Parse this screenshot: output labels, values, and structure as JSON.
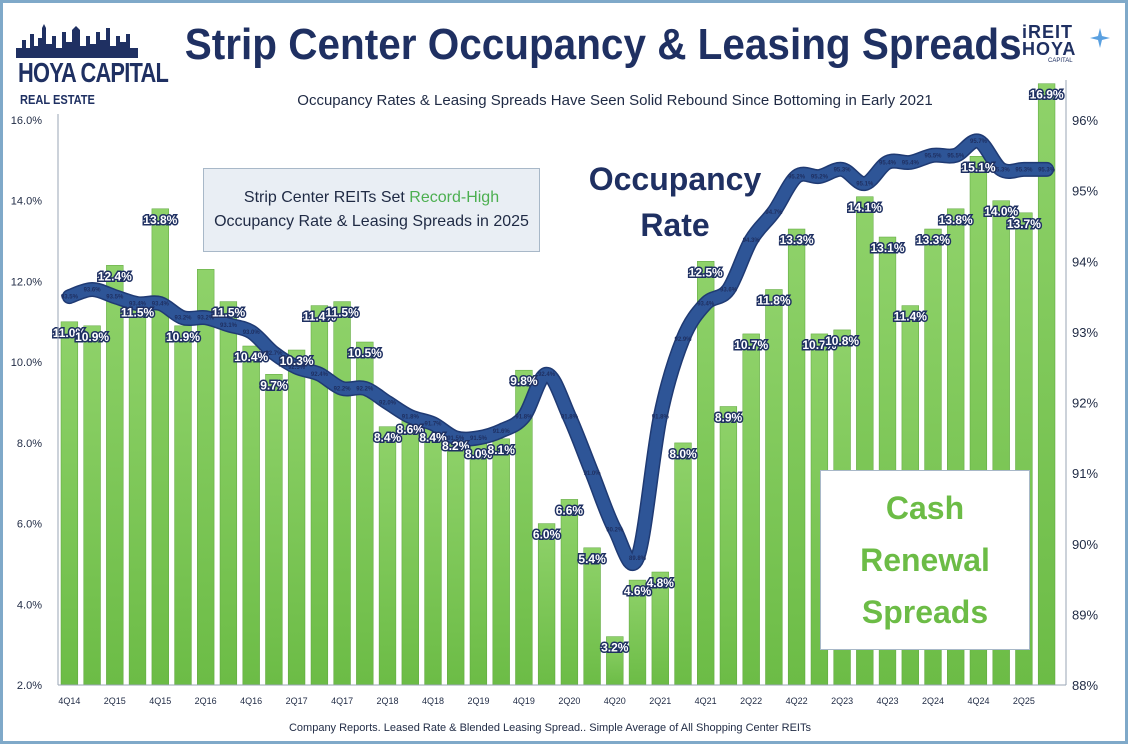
{
  "header": {
    "title": "Strip Center Occupancy & Leasing Spreads",
    "subtitle": "Occupancy Rates & Leasing Spreads Have Seen Solid Rebound Since Bottoming in Early 2021",
    "logo_left_name": "HOYA CAPITAL",
    "logo_left_sub": "REAL ESTATE",
    "logo_right_line1": "iREIT",
    "logo_right_line2": "HOYA",
    "logo_right_line3": "CAPITAL"
  },
  "callout": {
    "line1_prefix": "Strip Center REITs Set ",
    "line1_highlight": "Record-High",
    "line2": "Occupancy Rate & Leasing Spreads in 2025"
  },
  "occupancy_label": {
    "line1": "Occupancy",
    "line2": "Rate"
  },
  "cash_label": {
    "line1": "Cash",
    "line2": "Renewal",
    "line3": "Spreads"
  },
  "footer": "Company Reports. Leased Rate & Blended Leasing Spread.. Simple Average of All Shopping Center REITs",
  "colors": {
    "bar": "#6cbc46",
    "bar_top": "#8fd26a",
    "line": "#2e5597",
    "title": "#1f3062",
    "frame": "#7fa9c9",
    "highlight": "#4caf50"
  },
  "chart_data": {
    "type": "bar",
    "x_tick_labels": [
      "4Q14",
      "2Q15",
      "4Q15",
      "2Q16",
      "4Q16",
      "2Q17",
      "4Q17",
      "2Q18",
      "4Q18",
      "2Q19",
      "4Q19",
      "2Q20",
      "4Q20",
      "2Q21",
      "4Q21",
      "2Q22",
      "4Q22",
      "2Q23",
      "4Q23",
      "2Q24",
      "4Q24",
      "2Q25"
    ],
    "y_left": {
      "ylim": [
        2.0,
        16.0
      ],
      "ticks": [
        "2.0%",
        "4.0%",
        "6.0%",
        "8.0%",
        "10.0%",
        "12.0%",
        "14.0%",
        "16.0%"
      ]
    },
    "y_right": {
      "ylim": [
        88,
        96
      ],
      "ticks": [
        "88%",
        "89%",
        "90%",
        "91%",
        "92%",
        "93%",
        "94%",
        "95%",
        "96%"
      ]
    },
    "series": [
      {
        "kind": "bar",
        "values": [
          11.0,
          10.9,
          12.4,
          11.5,
          13.8,
          10.9,
          12.3,
          11.5,
          10.4,
          9.7,
          10.3,
          11.4,
          11.5,
          10.5,
          8.4,
          8.6,
          8.4,
          8.2,
          8.0,
          8.1,
          9.8,
          6.0,
          6.6,
          5.4,
          3.2,
          4.6,
          4.8,
          8.0,
          12.5,
          8.9,
          10.7,
          11.8,
          13.3,
          10.7,
          10.8,
          14.1,
          13.1,
          11.4,
          13.3,
          13.8,
          15.1,
          14.0,
          13.7,
          16.9
        ],
        "labels": [
          "11.0%",
          "10.9%",
          "12.4%",
          "11.5%",
          "13.8%",
          "10.9%",
          "",
          "11.5%",
          "10.4%",
          "9.7%",
          "10.3%",
          "11.4%",
          "11.5%",
          "10.5%",
          "8.4%",
          "8.6%",
          "8.4%",
          "8.2%",
          "8.0%",
          "8.1%",
          "9.8%",
          "6.0%",
          "6.6%",
          "5.4%",
          "3.2%",
          "4.6%",
          "4.8%",
          "8.0%",
          "12.5%",
          "8.9%",
          "10.7%",
          "11.8%",
          "13.3%",
          "10.7%",
          "10.8%",
          "14.1%",
          "13.1%",
          "11.4%",
          "13.3%",
          "13.8%",
          "15.1%",
          "14.0%",
          "13.7%",
          "16.9%"
        ]
      },
      {
        "kind": "line",
        "values": [
          93.5,
          93.6,
          93.5,
          93.4,
          93.4,
          93.2,
          93.2,
          93.1,
          93.0,
          92.7,
          92.5,
          92.4,
          92.2,
          92.2,
          92.0,
          91.8,
          91.7,
          91.5,
          91.5,
          91.6,
          91.8,
          92.4,
          91.8,
          91.0,
          90.2,
          89.8,
          91.8,
          92.9,
          93.4,
          93.6,
          94.3,
          94.7,
          95.2,
          95.2,
          95.3,
          95.1,
          95.4,
          95.4,
          95.5,
          95.5,
          95.7,
          95.3,
          95.3,
          95.3
        ],
        "labels": [
          "93.5%",
          "93.6%",
          "93.5%",
          "93.4%",
          "93.4%",
          "93.2%",
          "93.2%",
          "93.1%",
          "93.0%",
          "92.7%",
          "92.5%",
          "92.4%",
          "92.2%",
          "92.2%",
          "92.0%",
          "91.8%",
          "91.7%",
          "91.5%",
          "91.5%",
          "91.6%",
          "91.8%",
          "92.4%",
          "91.8%",
          "91.0%",
          "90.2%",
          "89.8%",
          "91.8%",
          "92.9%",
          "93.4%",
          "93.6%",
          "94.3%",
          "94.7%",
          "95.2%",
          "95.2%",
          "95.3%",
          "95.1%",
          "95.4%",
          "95.4%",
          "95.5%",
          "95.5%",
          "95.7%",
          "95.3%",
          "95.3%",
          "95.3%"
        ]
      }
    ],
    "grid": false
  }
}
